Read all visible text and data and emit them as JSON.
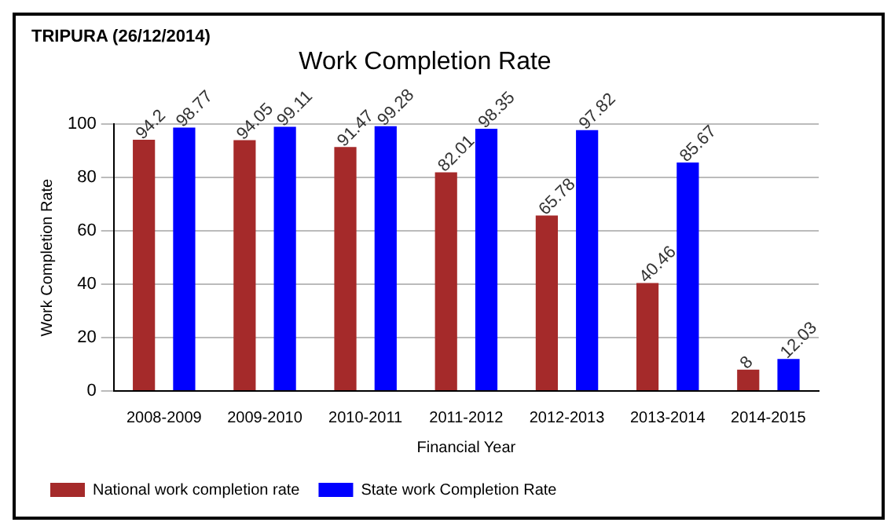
{
  "chart_data": {
    "type": "bar",
    "title": "Work Completion Rate",
    "xlabel": "Financial Year",
    "ylabel": "Work Completion Rate",
    "annotations": [
      "TRIPURA (26/12/2014)"
    ],
    "categories": [
      "2008-2009",
      "2009-2010",
      "2010-2011",
      "2011-2012",
      "2012-2013",
      "2013-2014",
      "2014-2015"
    ],
    "series": [
      {
        "name": "National work completion rate",
        "color": "#a52a2a",
        "values": [
          94.2,
          94.05,
          91.47,
          82.01,
          65.78,
          40.46,
          8
        ]
      },
      {
        "name": "State work Completion Rate",
        "color": "#0000ff",
        "values": [
          98.77,
          99.11,
          99.28,
          98.35,
          97.82,
          85.67,
          12.03
        ]
      }
    ],
    "ylim": [
      0,
      100
    ],
    "yticks": [
      0,
      20,
      40,
      60,
      80,
      100
    ],
    "grid": "y",
    "legend": "bottom left",
    "data_labels": true
  }
}
